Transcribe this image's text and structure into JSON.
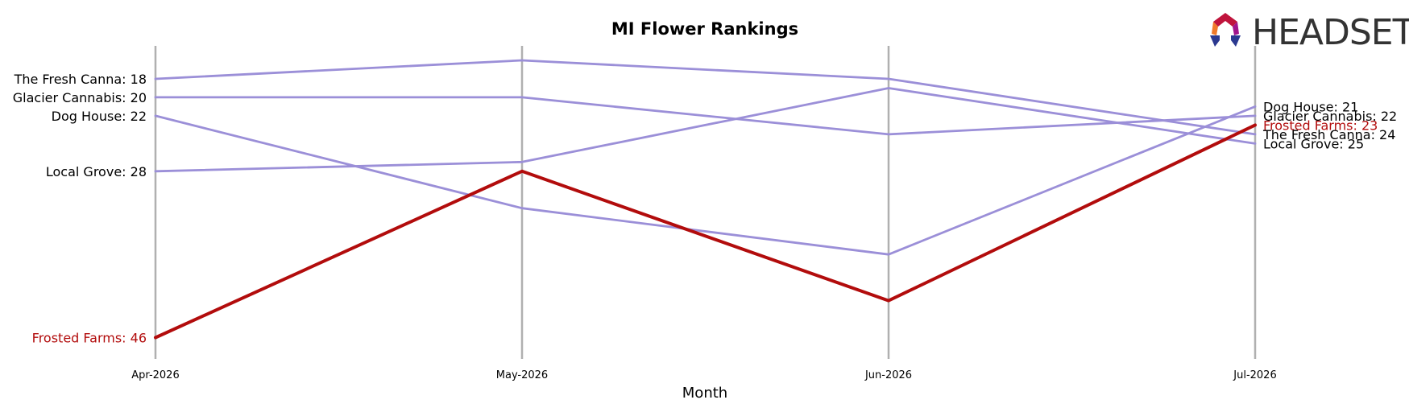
{
  "brand": {
    "name": "HEADSET"
  },
  "chart_data": {
    "type": "line",
    "title": "MI Flower Rankings",
    "xlabel": "Month",
    "ylabel": "",
    "x": [
      "Apr-2026",
      "May-2026",
      "Jun-2026",
      "Jul-2026"
    ],
    "ylim": [
      47,
      16
    ],
    "y_inverted": true,
    "grid": false,
    "colors": {
      "other": "#9b8fd8",
      "highlight": "#b20c0c",
      "vline": "#b0b0b0"
    },
    "series": [
      {
        "name": "The Fresh Canna",
        "values": [
          18,
          16,
          18,
          24
        ],
        "highlight": false,
        "start_label": "The Fresh Canna: 18",
        "end_label": "The Fresh Canna: 24"
      },
      {
        "name": "Glacier Cannabis",
        "values": [
          20,
          20,
          24,
          22
        ],
        "highlight": false,
        "start_label": "Glacier Cannabis: 20",
        "end_label": "Glacier Cannabis: 22"
      },
      {
        "name": "Dog House",
        "values": [
          22,
          32,
          37,
          21
        ],
        "highlight": false,
        "start_label": "Dog House: 22",
        "end_label": "Dog House: 21"
      },
      {
        "name": "Local Grove",
        "values": [
          28,
          27,
          19,
          25
        ],
        "highlight": false,
        "start_label": "Local Grove: 28",
        "end_label": "Local Grove: 25"
      },
      {
        "name": "Frosted Farms",
        "values": [
          46,
          28,
          42,
          23
        ],
        "highlight": true,
        "start_label": "Frosted Farms: 46",
        "end_label": "Frosted Farms: 23"
      }
    ]
  }
}
